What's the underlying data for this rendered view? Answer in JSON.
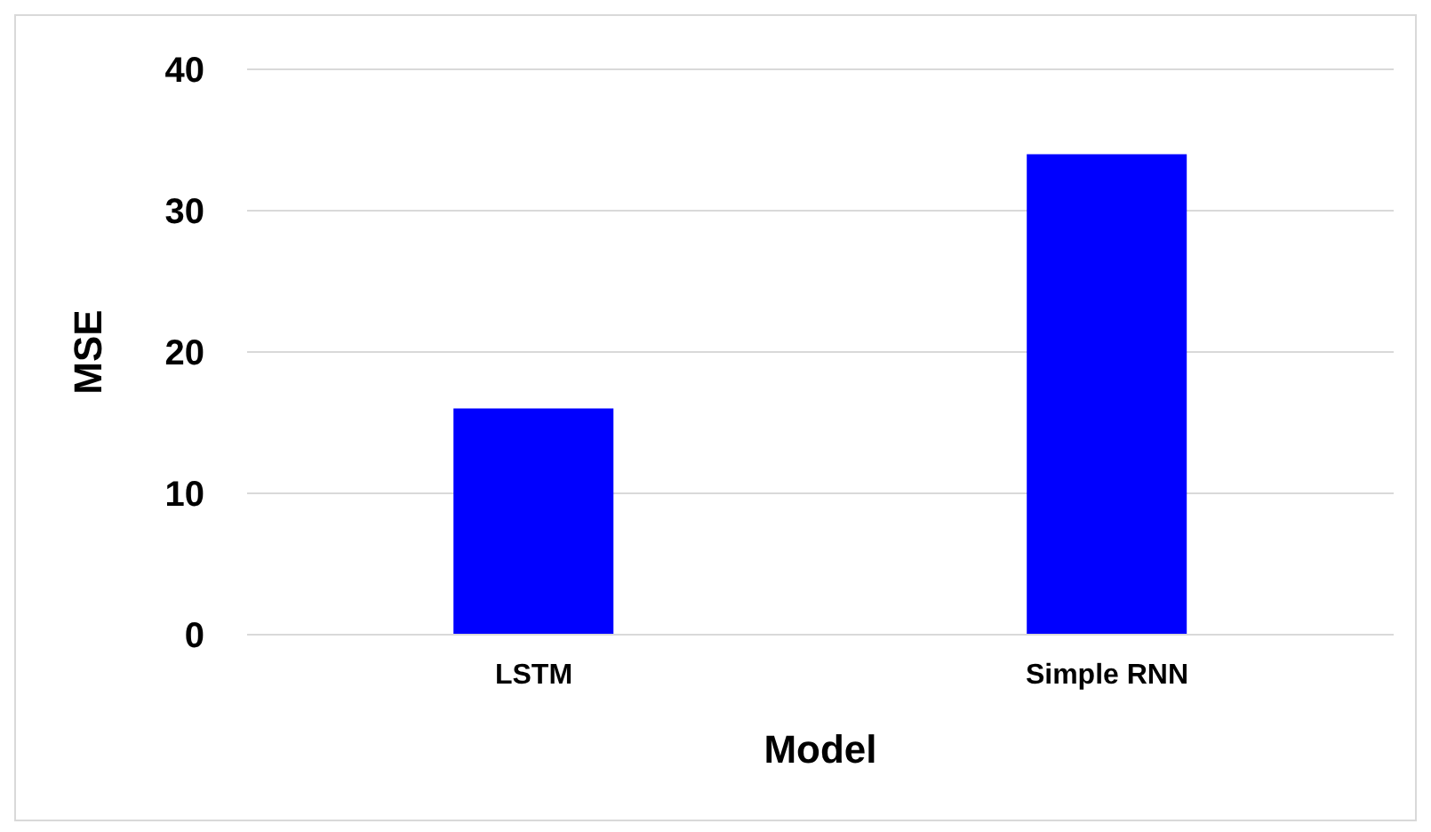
{
  "chart_data": {
    "type": "bar",
    "xlabel": "Model",
    "ylabel": "MSE",
    "categories": [
      "LSTM",
      "Simple RNN"
    ],
    "values": [
      16,
      34
    ],
    "color": "#0000ff",
    "ylim": [
      0,
      40
    ],
    "yticks": [
      0,
      10,
      20,
      30,
      40
    ],
    "grid": "y"
  }
}
